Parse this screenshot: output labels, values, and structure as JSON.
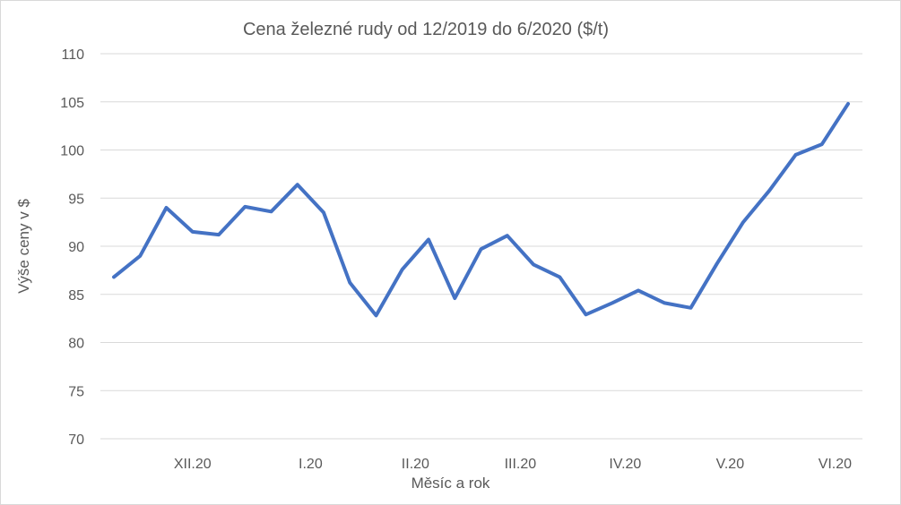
{
  "chart_data": {
    "type": "line",
    "title": "Cena železné rudy od 12/2019 do 6/2020 ($/t)",
    "xlabel": "Měsíc a rok",
    "ylabel": "Výše ceny v $",
    "ylim": [
      70,
      110
    ],
    "yticks": [
      70,
      75,
      80,
      85,
      90,
      95,
      100,
      105,
      110
    ],
    "grid": true,
    "legend": "none",
    "x_tick_labels": [
      {
        "label": "XII.20",
        "index": 3
      },
      {
        "label": "I.20",
        "index": 7.5
      },
      {
        "label": "II.20",
        "index": 11.5
      },
      {
        "label": "III.20",
        "index": 15.5
      },
      {
        "label": "IV.20",
        "index": 19.5
      },
      {
        "label": "V.20",
        "index": 23.5
      },
      {
        "label": "VI.20",
        "index": 27.5
      }
    ],
    "series": [
      {
        "color": "#4472c4",
        "values": [
          86.8,
          89.0,
          94.0,
          91.5,
          91.2,
          94.1,
          93.6,
          96.4,
          93.5,
          86.2,
          82.8,
          87.6,
          90.7,
          84.6,
          89.7,
          91.1,
          88.1,
          86.8,
          82.9,
          84.1,
          85.4,
          84.1,
          83.6,
          88.2,
          92.5,
          95.8,
          99.5,
          100.6,
          104.8
        ]
      }
    ]
  }
}
